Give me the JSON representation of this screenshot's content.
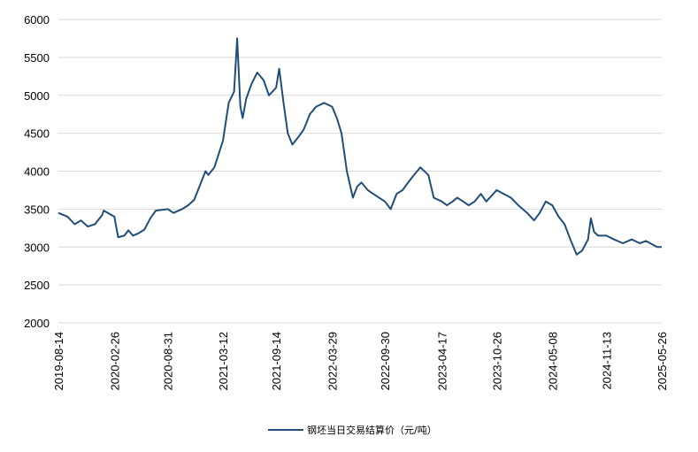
{
  "chart_data": {
    "type": "line",
    "title": "",
    "xlabel": "",
    "ylabel": "",
    "ylim": [
      2000,
      6000
    ],
    "yticks": [
      2000,
      2500,
      3000,
      3500,
      4000,
      4500,
      5000,
      5500,
      6000
    ],
    "x_tick_labels": [
      "2019-08-14",
      "2020-02-26",
      "2020-08-31",
      "2021-03-12",
      "2021-09-14",
      "2022-03-29",
      "2022-09-30",
      "2023-04-17",
      "2023-10-26",
      "2024-05-08",
      "2024-11-13",
      "2025-05-26"
    ],
    "grid": "horizontal",
    "legend_position": "bottom",
    "series": [
      {
        "name": "钢坯当日交易结算价（元/吨）",
        "color": "#1f4e79",
        "x": [
          "2019-08-14",
          "2019-09-15",
          "2019-10-10",
          "2019-11-01",
          "2019-11-25",
          "2019-12-20",
          "2020-01-14",
          "2020-01-20",
          "2020-02-26",
          "2020-03-10",
          "2020-04-01",
          "2020-04-15",
          "2020-05-01",
          "2020-05-20",
          "2020-06-10",
          "2020-07-01",
          "2020-07-20",
          "2020-08-31",
          "2020-09-20",
          "2020-10-20",
          "2020-11-10",
          "2020-12-01",
          "2020-12-20",
          "2021-01-10",
          "2021-01-20",
          "2021-02-10",
          "2021-03-12",
          "2021-04-01",
          "2021-04-20",
          "2021-05-01",
          "2021-05-12",
          "2021-05-20",
          "2021-06-01",
          "2021-06-20",
          "2021-07-10",
          "2021-08-01",
          "2021-08-20",
          "2021-09-14",
          "2021-09-25",
          "2021-10-10",
          "2021-10-25",
          "2021-11-10",
          "2021-12-01",
          "2021-12-20",
          "2022-01-10",
          "2022-02-01",
          "2022-03-01",
          "2022-03-29",
          "2022-04-15",
          "2022-05-01",
          "2022-05-20",
          "2022-06-10",
          "2022-06-25",
          "2022-07-10",
          "2022-08-01",
          "2022-08-20",
          "2022-09-30",
          "2022-10-20",
          "2022-11-10",
          "2022-12-01",
          "2022-12-20",
          "2023-01-10",
          "2023-02-01",
          "2023-03-01",
          "2023-03-20",
          "2023-04-17",
          "2023-05-05",
          "2023-05-25",
          "2023-06-10",
          "2023-07-01",
          "2023-07-20",
          "2023-08-10",
          "2023-09-01",
          "2023-09-20",
          "2023-10-26",
          "2023-11-20",
          "2023-12-15",
          "2024-01-10",
          "2024-02-10",
          "2024-03-05",
          "2024-03-25",
          "2024-04-15",
          "2024-05-08",
          "2024-05-30",
          "2024-06-20",
          "2024-07-10",
          "2024-08-01",
          "2024-08-20",
          "2024-09-10",
          "2024-09-20",
          "2024-10-01",
          "2024-10-15",
          "2024-11-13",
          "2024-12-10",
          "2025-01-10",
          "2025-02-10",
          "2025-03-10",
          "2025-04-01",
          "2025-04-20",
          "2025-05-10",
          "2025-05-26"
        ],
        "values": [
          3450,
          3400,
          3300,
          3350,
          3270,
          3300,
          3420,
          3480,
          3400,
          3130,
          3150,
          3220,
          3150,
          3180,
          3230,
          3380,
          3480,
          3500,
          3450,
          3500,
          3550,
          3620,
          3800,
          4000,
          3950,
          4050,
          4400,
          4900,
          5050,
          5750,
          4850,
          4700,
          4950,
          5150,
          5300,
          5200,
          5000,
          5100,
          5350,
          4900,
          4500,
          4350,
          4450,
          4550,
          4750,
          4850,
          4900,
          4850,
          4700,
          4500,
          4000,
          3650,
          3800,
          3850,
          3750,
          3700,
          3600,
          3500,
          3700,
          3750,
          3850,
          3950,
          4050,
          3950,
          3650,
          3600,
          3550,
          3600,
          3650,
          3600,
          3550,
          3600,
          3700,
          3600,
          3750,
          3700,
          3650,
          3550,
          3450,
          3350,
          3450,
          3600,
          3550,
          3400,
          3300,
          3100,
          2900,
          2950,
          3100,
          3380,
          3200,
          3150,
          3150,
          3100,
          3050,
          3100,
          3050,
          3080,
          3040,
          3000,
          3000
        ]
      }
    ]
  }
}
